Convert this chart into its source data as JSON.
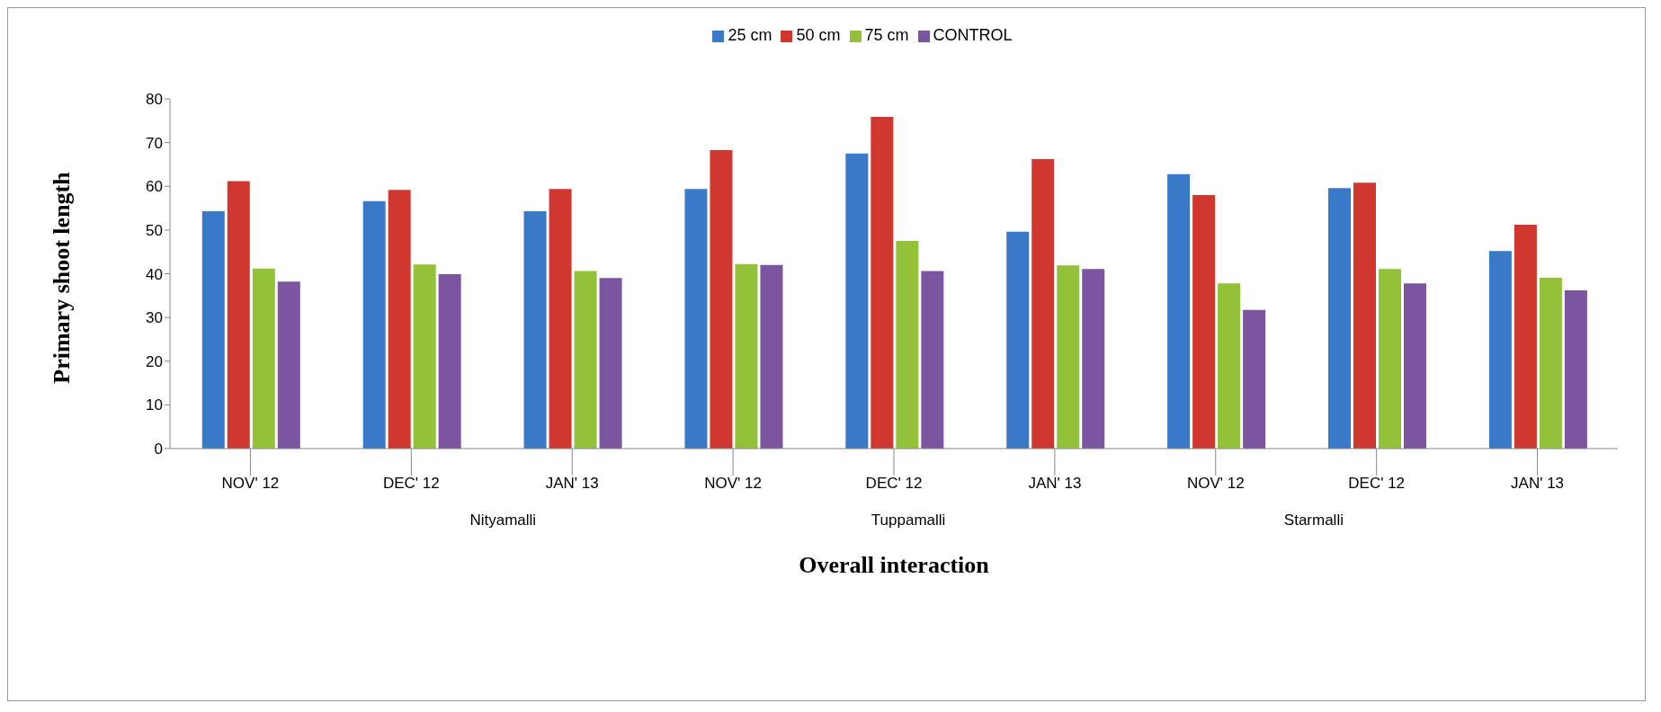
{
  "chart_data": {
    "type": "bar",
    "xlabel": "Overall interaction",
    "ylabel": "Primary shoot length",
    "categories": [
      "NOV' 12",
      "DEC' 12",
      "JAN' 13",
      "NOV' 12",
      "DEC' 12",
      "JAN' 13",
      "NOV' 12",
      "DEC' 12",
      "JAN' 13"
    ],
    "series": [
      {
        "name": "25 cm",
        "color": "#3a78c8",
        "values": [
          54.3,
          56.6,
          54.3,
          59.4,
          67.5,
          49.6,
          62.8,
          59.6,
          45.2
        ]
      },
      {
        "name": "50 cm",
        "color": "#d0382f",
        "values": [
          61.2,
          59.2,
          59.4,
          68.3,
          75.9,
          66.2,
          58.0,
          60.8,
          51.2
        ]
      },
      {
        "name": "75 cm",
        "color": "#93c13a",
        "values": [
          41.2,
          42.1,
          40.6,
          42.2,
          47.5,
          41.9,
          37.8,
          41.1,
          39.1
        ]
      },
      {
        "name": "CONTROL",
        "color": "#7b55a0",
        "values": [
          38.2,
          39.9,
          39.0,
          42.0,
          40.6,
          41.1,
          31.7,
          37.8,
          36.2
        ]
      }
    ],
    "annotations": [
      "Nityamalli",
      "Tuppamalli",
      "Starmalli"
    ],
    "ylim": [
      0,
      80
    ],
    "yticks": [
      0,
      10,
      20,
      30,
      40,
      50,
      60,
      70,
      80
    ],
    "grid": false,
    "legend": "top"
  }
}
